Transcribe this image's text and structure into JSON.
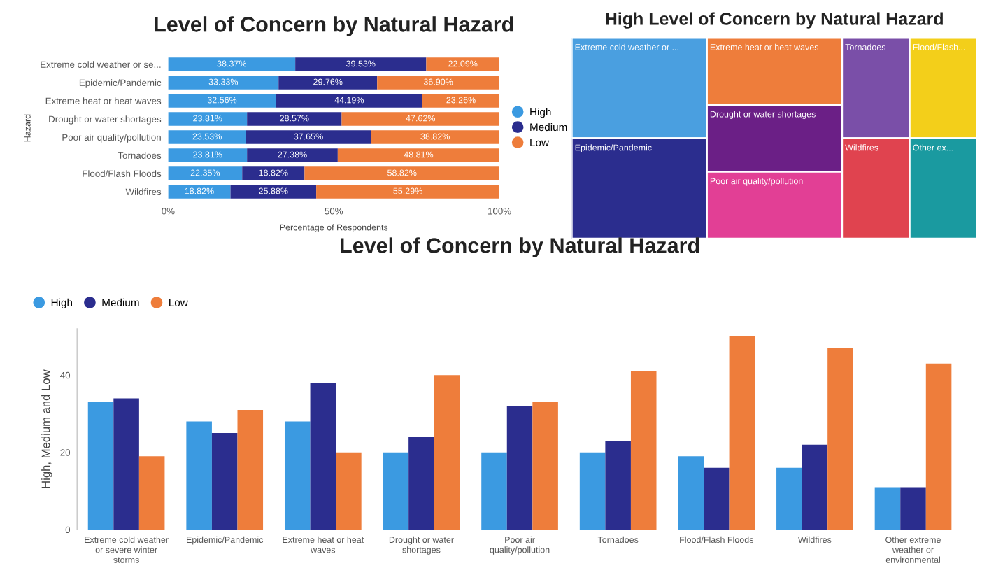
{
  "chart_data": [
    {
      "type": "bar",
      "title": "Level of Concern by Natural Hazard",
      "orientation": "horizontal",
      "stacked": true,
      "xlabel": "Percentage of Respondents",
      "ylabel": "Hazard",
      "categories": [
        "Extreme cold weather or se...",
        "Epidemic/Pandemic",
        "Extreme heat or heat waves",
        "Drought or water shortages",
        "Poor air quality/pollution",
        "Tornadoes",
        "Flood/Flash Floods",
        "Wildfires"
      ],
      "series": [
        {
          "name": "High",
          "color": "#3b9ae1",
          "values": [
            38.37,
            33.33,
            32.56,
            23.81,
            23.53,
            23.81,
            22.35,
            18.82
          ],
          "value_labels": [
            "38.37%",
            "33.33%",
            "32.56%",
            "23.81%",
            "23.53%",
            "23.81%",
            "22.35%",
            "18.82%"
          ]
        },
        {
          "name": "Medium",
          "color": "#2b2d8e",
          "values": [
            39.53,
            29.76,
            44.19,
            28.57,
            37.65,
            27.38,
            18.82,
            25.88
          ],
          "value_labels": [
            "39.53%",
            "29.76%",
            "44.19%",
            "28.57%",
            "37.65%",
            "27.38%",
            "18.82%",
            "25.88%"
          ]
        },
        {
          "name": "Low",
          "color": "#ee7d3b",
          "values": [
            22.09,
            36.9,
            23.26,
            47.62,
            38.82,
            48.81,
            58.82,
            55.29
          ],
          "value_labels": [
            "22.09%",
            "36.90%",
            "23.26%",
            "47.62%",
            "38.82%",
            "48.81%",
            "58.82%",
            "55.29%"
          ]
        }
      ],
      "xlim": [
        0,
        100
      ],
      "xticks": [
        {
          "value": 0,
          "label": "0%"
        },
        {
          "value": 50,
          "label": "50%"
        },
        {
          "value": 100,
          "label": "100%"
        }
      ],
      "legend": "right",
      "grid": false
    },
    {
      "type": "other",
      "title": "High Level of Concern by Natural Hazard",
      "categories": [
        "Extreme cold weather or ...",
        "Epidemic/Pandemic",
        "Extreme heat or heat waves",
        "Drought or water shortages",
        "Poor air quality/pollution",
        "Tornadoes",
        "Flood/Flash...",
        "Wildfires",
        "Other ex..."
      ],
      "colors": [
        "#4a9fe0",
        "#2b2d8e",
        "#ee7d3b",
        "#6b1f86",
        "#e23f95",
        "#7a4fa8",
        "#f3cf1a",
        "#e0434f",
        "#1a9aa0"
      ]
    },
    {
      "type": "bar",
      "title": "Level of Concern by Natural Hazard",
      "ylabel": "High, Medium and Low",
      "categories": [
        "Extreme cold weather\nor severe winter\nstorms",
        "Epidemic/Pandemic",
        "Extreme heat or heat\nwaves",
        "Drought or water\nshortages",
        "Poor air\nquality/pollution",
        "Tornadoes",
        "Flood/Flash Floods",
        "Wildfires",
        "Other extreme\nweather or\nenvironmental"
      ],
      "series": [
        {
          "name": "High",
          "color": "#3b9ae1",
          "values": [
            33,
            28,
            28,
            20,
            20,
            20,
            19,
            16,
            11
          ]
        },
        {
          "name": "Medium",
          "color": "#2b2d8e",
          "values": [
            34,
            25,
            38,
            24,
            32,
            23,
            16,
            22,
            11
          ]
        },
        {
          "name": "Low",
          "color": "#ee7d3b",
          "values": [
            19,
            31,
            20,
            40,
            33,
            41,
            50,
            47,
            43
          ]
        }
      ],
      "ylim": [
        0,
        52
      ],
      "yticks": [
        0,
        20,
        40
      ],
      "legend": "top left",
      "grid": false
    }
  ]
}
